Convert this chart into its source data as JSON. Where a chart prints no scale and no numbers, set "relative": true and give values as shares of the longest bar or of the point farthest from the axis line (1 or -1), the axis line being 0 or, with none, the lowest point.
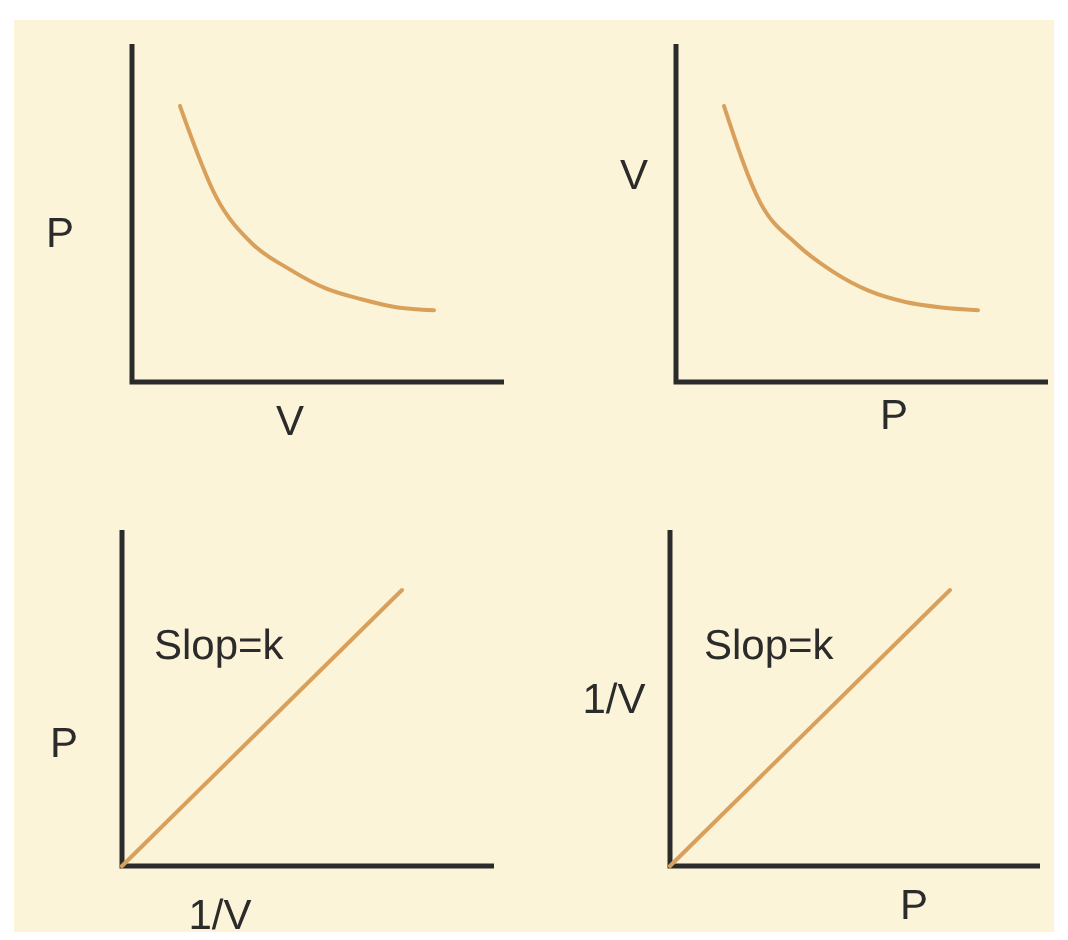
{
  "chart_data": [
    {
      "type": "line",
      "xlabel": "V",
      "ylabel": "P",
      "categories": [
        null,
        null,
        null,
        null,
        null,
        null,
        null,
        null
      ],
      "values": [
        1,
        0.67,
        0.5,
        0.41,
        0.34,
        0.3,
        0.27,
        0.26
      ],
      "color": "#d9a05b",
      "relative": true
    },
    {
      "type": "line",
      "xlabel": "P",
      "ylabel": "V",
      "categories": [
        null,
        null,
        null,
        null,
        null,
        null,
        null,
        null
      ],
      "values": [
        1,
        0.65,
        0.5,
        0.4,
        0.33,
        0.29,
        0.27,
        0.26
      ],
      "color": "#d9a05b",
      "relative": true
    },
    {
      "type": "line",
      "xlabel": "1/V",
      "ylabel": "P",
      "categories": [
        null,
        null
      ],
      "values": [
        0,
        1
      ],
      "color": "#d9a05b",
      "relative": true,
      "annotations": [
        "Slop=k"
      ]
    },
    {
      "type": "line",
      "xlabel": "P",
      "ylabel": "1/V",
      "categories": [
        null,
        null
      ],
      "values": [
        0,
        1
      ],
      "color": "#d9a05b",
      "relative": true,
      "annotations": [
        "Slop=k"
      ]
    }
  ]
}
